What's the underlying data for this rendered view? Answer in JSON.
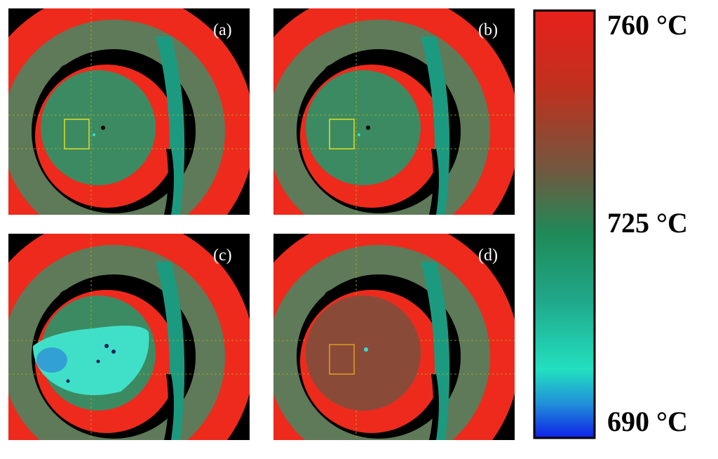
{
  "panels": [
    {
      "label": "(a)"
    },
    {
      "label": "(b)"
    },
    {
      "label": "(c)"
    },
    {
      "label": "(d)"
    }
  ],
  "colorbar": {
    "labels": [
      "760 °C",
      "725 °C",
      "690 °C"
    ]
  }
}
